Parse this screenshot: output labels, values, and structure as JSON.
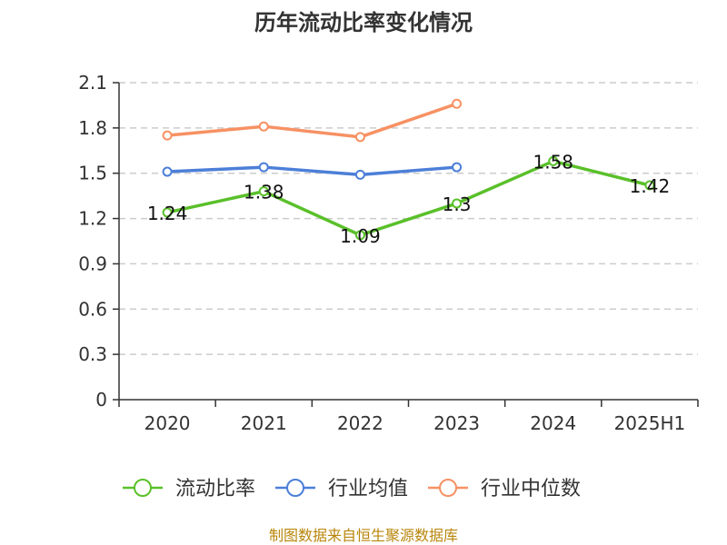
{
  "chart_data": {
    "type": "line",
    "title": "历年流动比率变化情况",
    "categories": [
      "2020",
      "2021",
      "2022",
      "2023",
      "2024",
      "2025H1"
    ],
    "y_ticks": [
      "0",
      "0.3",
      "0.6",
      "0.9",
      "1.2",
      "1.5",
      "1.8",
      "2.1"
    ],
    "ylim": [
      0,
      2.1
    ],
    "grid": true,
    "legend_position": "bottom",
    "series": [
      {
        "name": "流动比率",
        "color": "#5ac02a",
        "values": [
          1.24,
          1.38,
          1.09,
          1.3,
          1.58,
          1.42
        ],
        "labels": [
          "1.24",
          "1.38",
          "1.09",
          "1.3",
          "1.58",
          "1.42"
        ]
      },
      {
        "name": "行业均值",
        "color": "#4c7fd8",
        "values": [
          1.51,
          1.54,
          1.49,
          1.54,
          null,
          null
        ]
      },
      {
        "name": "行业中位数",
        "color": "#f79163",
        "values": [
          1.75,
          1.81,
          1.74,
          1.96,
          null,
          null
        ]
      }
    ]
  },
  "source_text": "制图数据来自恒生聚源数据库"
}
